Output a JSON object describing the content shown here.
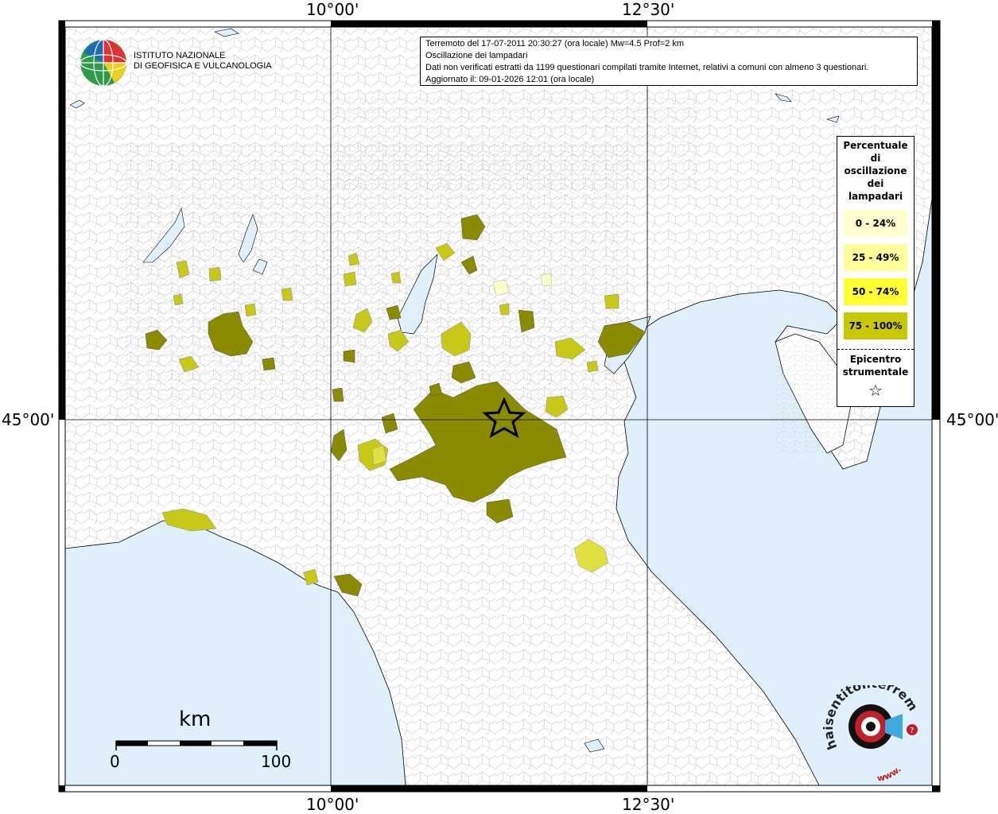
{
  "info": {
    "line1": "Terremoto del 17-07-2011 20:30:27 (ora locale) Mw=4.5 Prof=2 km",
    "line2": "Oscillazione dei lampadari",
    "line3": "Dati non verificati estratti da 1199 questionari compilati tramite Internet, relativi a comuni con almeno 3 questionari.",
    "line4": "Aggiornato il: 09-01-2026 12:01 (ora locale)"
  },
  "coords": {
    "lon_left": "10°00'",
    "lon_right": "12°30'",
    "lat": "45°00'"
  },
  "institute": {
    "line1": "ISTITUTO NAZIONALE",
    "line2": "DI GEOFISICA E VULCANOLOGIA"
  },
  "legend": {
    "title_lines": [
      "Percentuale",
      "di",
      "oscillazione",
      "dei",
      "lampadari"
    ],
    "classes": [
      {
        "label": "0 - 24%",
        "color": "#ffffd0"
      },
      {
        "label": "25 - 49%",
        "color": "#ffff99"
      },
      {
        "label": "50 - 74%",
        "color": "#ffff33"
      },
      {
        "label": "75 - 100%",
        "color": "#c8c800"
      }
    ],
    "epicenter_title_lines": [
      "Epicentro",
      "strumentale"
    ],
    "epicenter_symbol": "☆"
  },
  "scale": {
    "unit": "km",
    "min_label": "0",
    "max_label": "100"
  },
  "brand": {
    "text": "haisentitoilterremoto.it",
    "prefix": "www."
  },
  "colors": {
    "sea": "#dff0fb",
    "class_75_100_fill": "#8b8b00",
    "class_50_74_fill": "#c8c818",
    "class_25_49_fill": "#e0e040",
    "class_0_24_fill": "#ffffc8"
  }
}
